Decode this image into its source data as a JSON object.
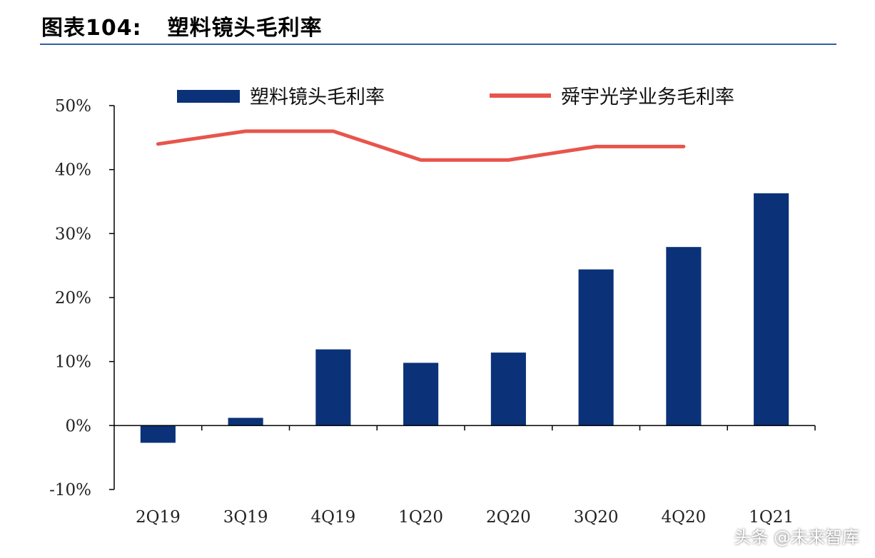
{
  "figure": {
    "number": "图表104:",
    "title": "塑料镜头毛利率"
  },
  "watermark": "头条 @未来智库",
  "colors": {
    "bar": "#0b3278",
    "line": "#e8554c",
    "axis": "#000000",
    "rule": "#2e5fa8"
  },
  "chart_data": {
    "type": "bar",
    "title": "",
    "xlabel": "",
    "ylabel": "",
    "categories": [
      "2Q19",
      "3Q19",
      "4Q19",
      "1Q20",
      "2Q20",
      "3Q20",
      "4Q20",
      "1Q21"
    ],
    "y_ticks": [
      "-10%",
      "0%",
      "10%",
      "20%",
      "30%",
      "40%",
      "50%"
    ],
    "ylim": [
      -10,
      50
    ],
    "legend_position": "top",
    "grid": false,
    "series": [
      {
        "name": "塑料镜头毛利率",
        "kind": "bar",
        "values": [
          -2.7,
          1.2,
          11.9,
          9.8,
          11.4,
          24.4,
          27.9,
          36.3
        ]
      },
      {
        "name": "舜宇光学业务毛利率",
        "kind": "line",
        "values": [
          44.0,
          46.0,
          46.0,
          41.5,
          41.5,
          43.6,
          43.6,
          null
        ]
      }
    ]
  }
}
